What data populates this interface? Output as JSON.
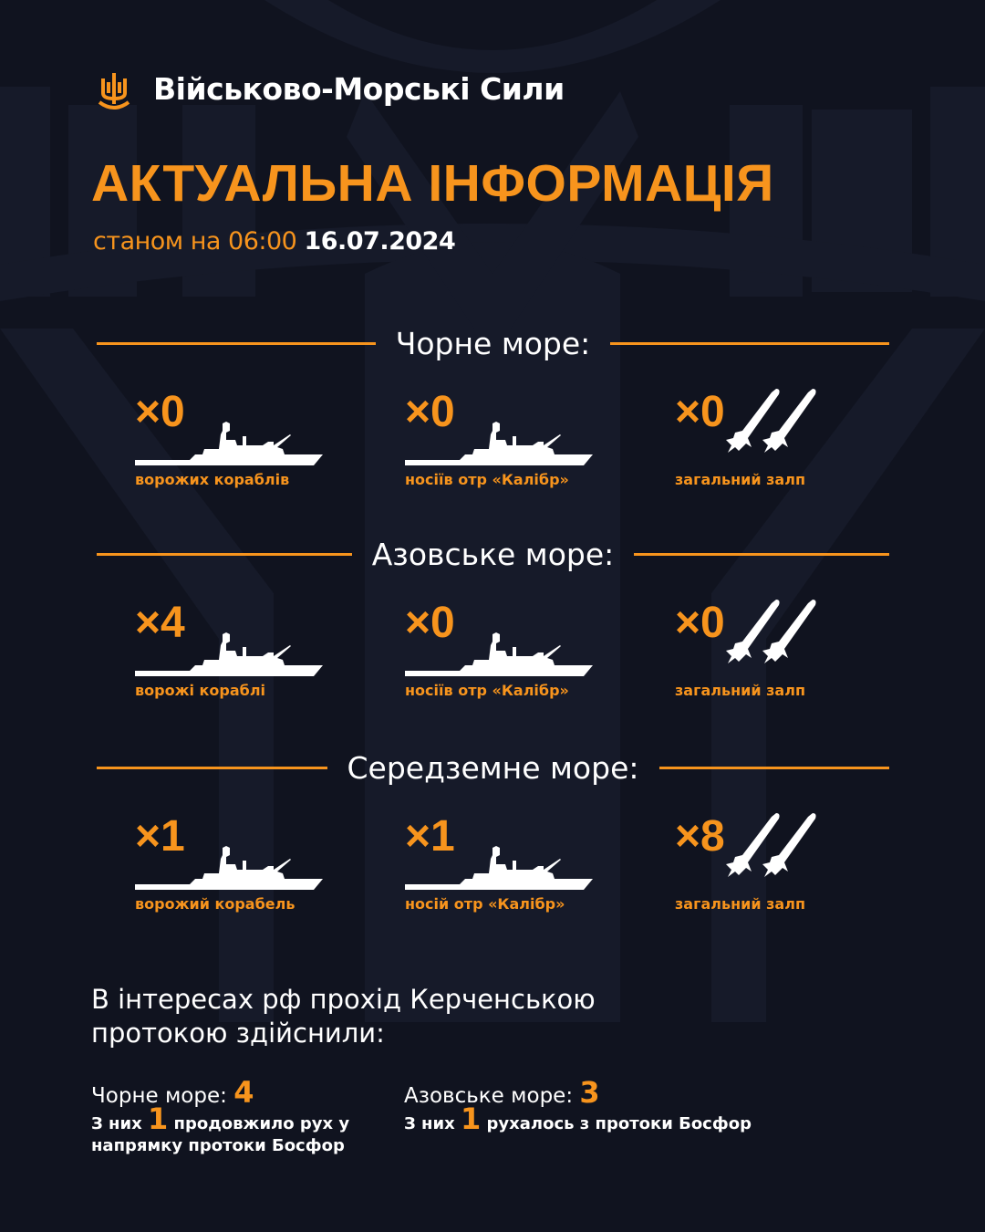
{
  "brand": {
    "name": "Військово-Морські Сили",
    "logo": "trident-anchor-icon"
  },
  "title": "АКТУАЛЬНА ІНФОРМАЦІЯ",
  "subtitle": {
    "prefix": "станом на 06:00",
    "date": "16.07.2024"
  },
  "colors": {
    "accent": "#f7941d",
    "background": "#10131f",
    "text": "#ffffff"
  },
  "seas": [
    {
      "name": "Чорне море:",
      "items": [
        {
          "count": "×0",
          "label": "ворожих кораблів",
          "icon": "warship-icon"
        },
        {
          "count": "×0",
          "label": "носіїв отр «Калібр»",
          "icon": "warship-icon"
        },
        {
          "count": "×0",
          "label": "загальний залп",
          "icon": "missiles-icon"
        }
      ]
    },
    {
      "name": "Азовське море:",
      "items": [
        {
          "count": "×4",
          "label": "ворожі кораблі",
          "icon": "warship-icon"
        },
        {
          "count": "×0",
          "label": "носіїв отр «Калібр»",
          "icon": "warship-icon"
        },
        {
          "count": "×0",
          "label": "загальний залп",
          "icon": "missiles-icon"
        }
      ]
    },
    {
      "name": "Середземне море:",
      "items": [
        {
          "count": "×1",
          "label": "ворожий корабель",
          "icon": "warship-icon"
        },
        {
          "count": "×1",
          "label": "носій отр «Калібр»",
          "icon": "warship-icon"
        },
        {
          "count": "×8",
          "label": "загальний залп",
          "icon": "missiles-icon"
        }
      ]
    }
  ],
  "kerch": {
    "text": "В інтересах рф прохід Керченською протокою здійснили:",
    "black": {
      "label": "Чорне море:",
      "value": "4",
      "note_pre": "З них",
      "note_num": "1",
      "note_post": "продовжило рух у напрямку протоки Босфор"
    },
    "azov": {
      "label": "Азовське море:",
      "value": "3",
      "note_pre": "З них",
      "note_num": "1",
      "note_post": "рухалось з протоки Босфор"
    }
  }
}
